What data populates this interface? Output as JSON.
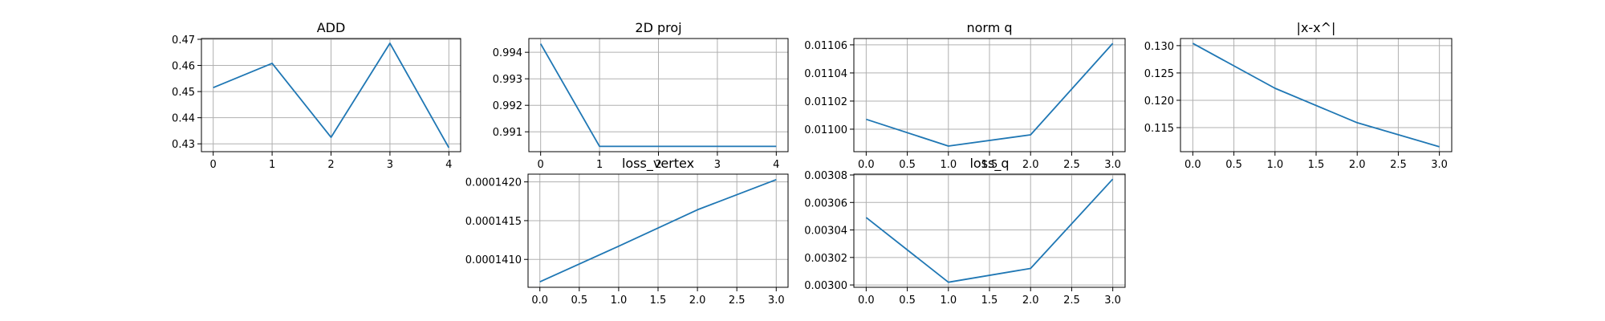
{
  "style": {
    "line_color": "#1f77b4",
    "grid_color": "#b0b0b0",
    "axes_color": "#000000",
    "background": "#ffffff"
  },
  "chart_data": [
    {
      "type": "line",
      "title": "ADD",
      "grid": true,
      "x": [
        0,
        1,
        2,
        3,
        4
      ],
      "values": [
        0.4515,
        0.4608,
        0.4325,
        0.4685,
        0.4285
      ],
      "xlim": [
        -0.2,
        4.2
      ],
      "ylim": [
        0.427,
        0.4703
      ],
      "xticks": [
        0,
        1,
        2,
        3,
        4
      ],
      "xtick_labels": [
        "0",
        "1",
        "2",
        "3",
        "4"
      ],
      "yticks": [
        0.43,
        0.44,
        0.45,
        0.46,
        0.47
      ],
      "ytick_labels": [
        "0.43",
        "0.44",
        "0.45",
        "0.46",
        "0.47"
      ]
    },
    {
      "type": "line",
      "title": "2D proj",
      "grid": true,
      "x": [
        0,
        1,
        2,
        3,
        4
      ],
      "values": [
        0.99432,
        0.99045,
        0.99045,
        0.99045,
        0.99045
      ],
      "xlim": [
        -0.2,
        4.2
      ],
      "ylim": [
        0.99025,
        0.99452
      ],
      "xticks": [
        0,
        1,
        2,
        3,
        4
      ],
      "xtick_labels": [
        "0",
        "1",
        "2",
        "3",
        "4"
      ],
      "yticks": [
        0.991,
        0.992,
        0.993,
        0.994
      ],
      "ytick_labels": [
        "0.991",
        "0.992",
        "0.993",
        "0.994"
      ]
    },
    {
      "type": "line",
      "title": "norm q",
      "grid": true,
      "x": [
        0,
        1,
        2,
        3
      ],
      "values": [
        0.011007,
        0.010988,
        0.010996,
        0.011061
      ],
      "xlim": [
        -0.15,
        3.15
      ],
      "ylim": [
        0.010984,
        0.0110645
      ],
      "xticks": [
        0,
        0.5,
        1,
        1.5,
        2,
        2.5,
        3
      ],
      "xtick_labels": [
        "0.0",
        "0.5",
        "1.0",
        "1.5",
        "2.0",
        "2.5",
        "3.0"
      ],
      "yticks": [
        0.011,
        0.01102,
        0.01104,
        0.01106
      ],
      "ytick_labels": [
        "0.01100",
        "0.01102",
        "0.01104",
        "0.01106"
      ]
    },
    {
      "type": "line",
      "title": "|x-x^|",
      "grid": true,
      "x": [
        0,
        1,
        2,
        3
      ],
      "values": [
        0.1304,
        0.1222,
        0.1159,
        0.1115
      ],
      "xlim": [
        -0.15,
        3.15
      ],
      "ylim": [
        0.1106,
        0.1313
      ],
      "xticks": [
        0,
        0.5,
        1,
        1.5,
        2,
        2.5,
        3
      ],
      "xtick_labels": [
        "0.0",
        "0.5",
        "1.0",
        "1.5",
        "2.0",
        "2.5",
        "3.0"
      ],
      "yticks": [
        0.115,
        0.12,
        0.125,
        0.13
      ],
      "ytick_labels": [
        "0.115",
        "0.120",
        "0.125",
        "0.130"
      ]
    },
    {
      "type": "line",
      "title": "loss_vertex",
      "grid": true,
      "x": [
        0,
        1,
        2,
        3
      ],
      "values": [
        0.00014071,
        0.00014117,
        0.00014164,
        0.00014203
      ],
      "xlim": [
        -0.15,
        3.15
      ],
      "ylim": [
        0.00014064,
        0.0001421
      ],
      "xticks": [
        0,
        0.5,
        1,
        1.5,
        2,
        2.5,
        3
      ],
      "xtick_labels": [
        "0.0",
        "0.5",
        "1.0",
        "1.5",
        "2.0",
        "2.5",
        "3.0"
      ],
      "yticks": [
        0.000141,
        0.0001415,
        0.000142
      ],
      "ytick_labels": [
        "0.0001410",
        "0.0001415",
        "0.0001420"
      ]
    },
    {
      "type": "line",
      "title": "loss_q",
      "grid": true,
      "x": [
        0,
        1,
        2,
        3
      ],
      "values": [
        0.003049,
        0.003002,
        0.003012,
        0.003077
      ],
      "xlim": [
        -0.15,
        3.15
      ],
      "ylim": [
        0.0029983,
        0.0030806
      ],
      "xticks": [
        0,
        0.5,
        1,
        1.5,
        2,
        2.5,
        3
      ],
      "xtick_labels": [
        "0.0",
        "0.5",
        "1.0",
        "1.5",
        "2.0",
        "2.5",
        "3.0"
      ],
      "yticks": [
        0.003,
        0.00302,
        0.00304,
        0.00306,
        0.00308
      ],
      "ytick_labels": [
        "0.00300",
        "0.00302",
        "0.00304",
        "0.00306",
        "0.00308"
      ]
    }
  ]
}
